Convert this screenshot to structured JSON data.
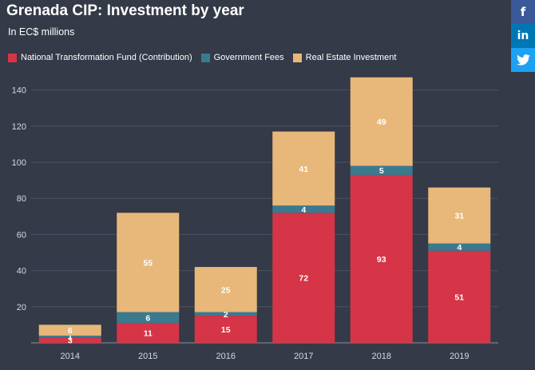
{
  "header": {
    "title": "Grenada CIP: Investment by year",
    "subtitle": "In EC$ millions"
  },
  "share": {
    "facebook_icon": "f",
    "linkedin_icon": "in",
    "twitter_icon": "twitter-bird"
  },
  "colors": {
    "background": "#343a47",
    "ntf": "#d63447",
    "fees": "#3a7a8f",
    "realestate": "#e8b77a",
    "grid": "#4b5261",
    "axis_text": "#d6d9de",
    "facebook": "#3b5998",
    "linkedin": "#0077b5",
    "twitter": "#1da1f2"
  },
  "chart_data": {
    "type": "bar",
    "stacked": true,
    "title": "Grenada CIP: Investment by year",
    "subtitle": "In EC$ millions",
    "xlabel": "",
    "ylabel": "",
    "ylim": [
      0,
      150
    ],
    "yticks": [
      20,
      40,
      60,
      80,
      100,
      120,
      140
    ],
    "grid": true,
    "legend_position": "top-left",
    "categories": [
      "2014",
      "2015",
      "2016",
      "2017",
      "2018",
      "2019"
    ],
    "series": [
      {
        "name": "National Transformation Fund (Contribution)",
        "color": "#d63447",
        "values": [
          3,
          11,
          15,
          72,
          93,
          51
        ]
      },
      {
        "name": "Government Fees",
        "color": "#3a7a8f",
        "values": [
          1,
          6,
          2,
          4,
          5,
          4
        ]
      },
      {
        "name": "Real Estate Investment",
        "color": "#e8b77a",
        "values": [
          6,
          55,
          25,
          41,
          49,
          31
        ]
      }
    ],
    "data_labels": [
      [
        "3",
        "11",
        "15",
        "72",
        "93",
        "51"
      ],
      [
        "1",
        "6",
        "2",
        "4",
        "5",
        "4"
      ],
      [
        "6",
        "55",
        "25",
        "41",
        "49",
        "31"
      ]
    ]
  }
}
